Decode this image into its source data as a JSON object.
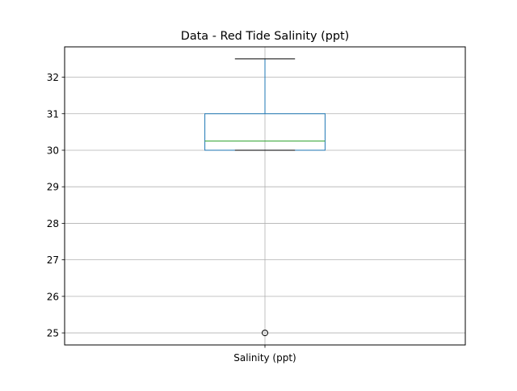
{
  "chart_data": {
    "type": "box",
    "title": "Data - Red Tide Salinity (ppt)",
    "categories": [
      "Salinity (ppt)"
    ],
    "boxes": [
      {
        "name": "Salinity (ppt)",
        "whisker_low": 30.0,
        "q1": 30.0,
        "median": 30.25,
        "q3": 31.0,
        "whisker_high": 32.5,
        "outliers": [
          25.0
        ]
      }
    ],
    "ylim": [
      24.67,
      32.83
    ],
    "yticks": [
      25,
      26,
      27,
      28,
      29,
      30,
      31,
      32
    ],
    "grid": true,
    "colors": {
      "box": "#1f77b4",
      "median": "#2ca02c",
      "whisker_cap": "#000000",
      "grid": "#b0b0b0",
      "outlier": "#000000"
    }
  }
}
